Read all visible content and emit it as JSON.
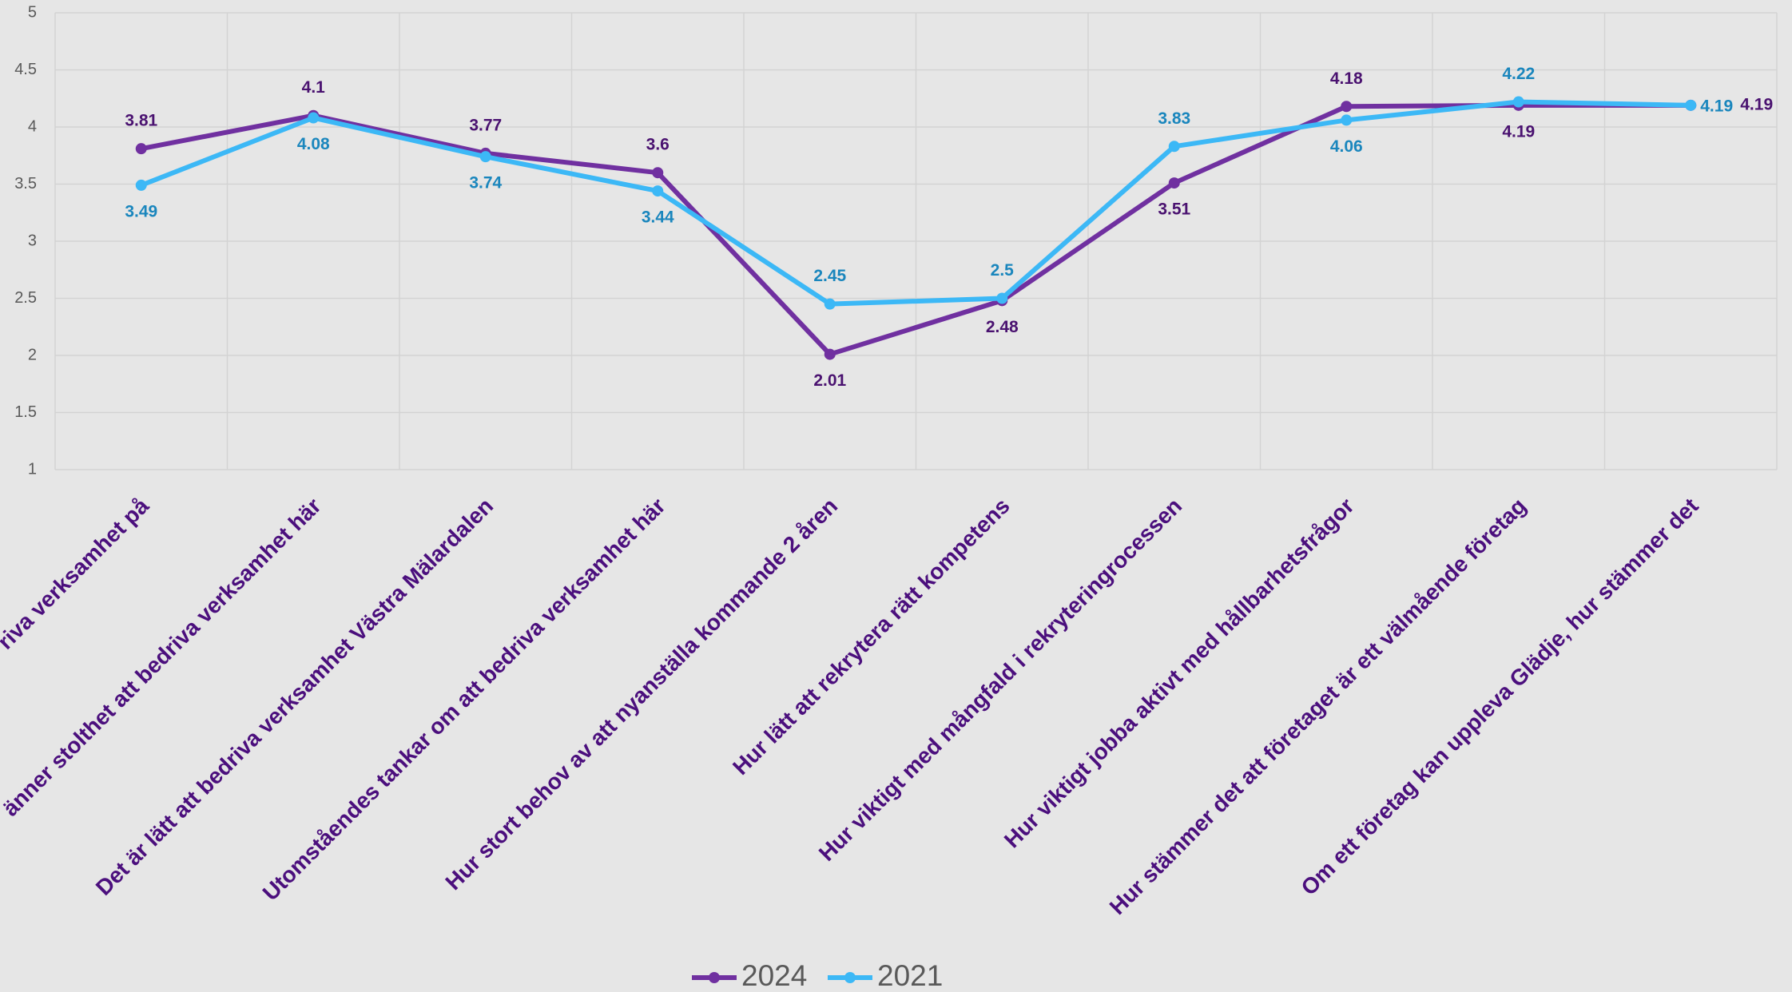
{
  "chart_data": {
    "type": "line",
    "categories": [
      "riva verksamhet på",
      "änner stolthet att bedriva verksamhet här",
      "Det är lätt att bedriva verksamhet Västra Mälardalen",
      "Utomståendes tankar om att bedriva verksamhet här",
      "Hur stort behov av att nyanställa kommande 2 åren",
      "Hur lätt att rekrytera rätt kompetens",
      "Hur viktigt med mångfald i rekryteringrocessen",
      "Hur viktigt jobba aktivt med hållbarhetsfrågor",
      "Hur stämmer det att företaget är ett välmående företag",
      "Om ett företag kan uppleva Glädje, hur stämmer det"
    ],
    "series": [
      {
        "name": "2024",
        "color": "#7030a0",
        "label_color": "#4a1270",
        "values": [
          3.81,
          4.1,
          3.77,
          3.6,
          2.01,
          2.48,
          3.51,
          4.18,
          4.19,
          4.19
        ]
      },
      {
        "name": "2021",
        "color": "#3cb8f6",
        "label_color": "#1a86bd",
        "values": [
          3.49,
          4.08,
          3.74,
          3.44,
          2.45,
          2.5,
          3.83,
          4.06,
          4.22,
          4.19
        ]
      }
    ],
    "ylim": [
      1,
      5
    ],
    "yticks": [
      1,
      1.5,
      2,
      2.5,
      3,
      3.5,
      4,
      4.5,
      5
    ],
    "grid": true,
    "legend": "bottom"
  }
}
